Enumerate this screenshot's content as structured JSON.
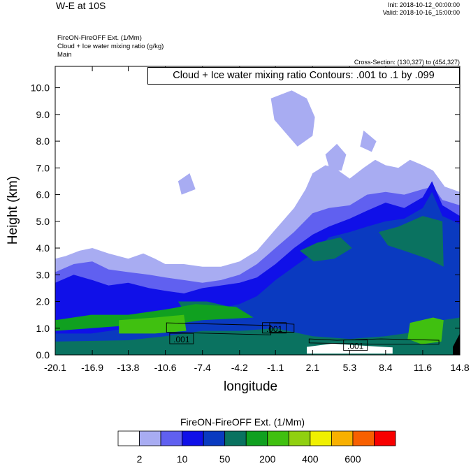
{
  "header": {
    "title": "W-E at 10S",
    "init": "Init: 2018-10-12_00:00:00",
    "valid": "Valid: 2018-10-16_15:00:00",
    "sub1": "FireON-FireOFF Ext.   (1/Mm)",
    "sub2": "Cloud + Ice water mixing ratio   (g/kg)",
    "sub3": "Main",
    "cross_section": "Cross-Section: (130,327) to (454,327)",
    "contour_info": "Cloud + Ice water mixing ratio Contours: .001 to .1 by .099"
  },
  "colors": {
    "levels": [
      "#ffffff",
      "#a8acf2",
      "#6060f0",
      "#1010e8",
      "#0a3ac0",
      "#0a7260",
      "#10a020",
      "#40c010",
      "#90d010",
      "#f0f000",
      "#f8b000",
      "#f86000",
      "#f80000"
    ],
    "frame": "#000000"
  },
  "chart_data": {
    "type": "contour-cross-section",
    "xlabel": "longitude",
    "ylabel": "Height (km)",
    "x_ticks": [
      "-20.1",
      "-16.9",
      "-13.8",
      "-10.6",
      "-7.4",
      "-4.2",
      "-1.1",
      "2.1",
      "5.3",
      "8.4",
      "11.6",
      "14.8"
    ],
    "x_tick_values": [
      -20.1,
      -16.9,
      -13.8,
      -10.6,
      -7.4,
      -4.2,
      -1.1,
      2.1,
      5.3,
      8.4,
      11.6,
      14.8
    ],
    "y_ticks": [
      "0.0",
      "1.0",
      "2.0",
      "3.0",
      "4.0",
      "5.0",
      "6.0",
      "7.0",
      "8.0",
      "9.0",
      "10.0"
    ],
    "y_tick_values": [
      0,
      1,
      2,
      3,
      4,
      5,
      6,
      7,
      8,
      9,
      10
    ],
    "xlim": [
      -20.1,
      14.8
    ],
    "ylim": [
      0,
      10.8
    ],
    "contour_labels": [
      {
        "text": ".001",
        "lon": -9.2,
        "km": 0.6
      },
      {
        "text": ".001",
        "lon": -1.2,
        "km": 1.0
      },
      {
        "text": ".001",
        "lon": 5.8,
        "km": 0.35
      }
    ],
    "colorbar": {
      "title": "FireON-FireOFF Ext.  (1/Mm)",
      "tick_labels": [
        "2",
        "10",
        "50",
        "200",
        "400",
        "600"
      ]
    }
  }
}
